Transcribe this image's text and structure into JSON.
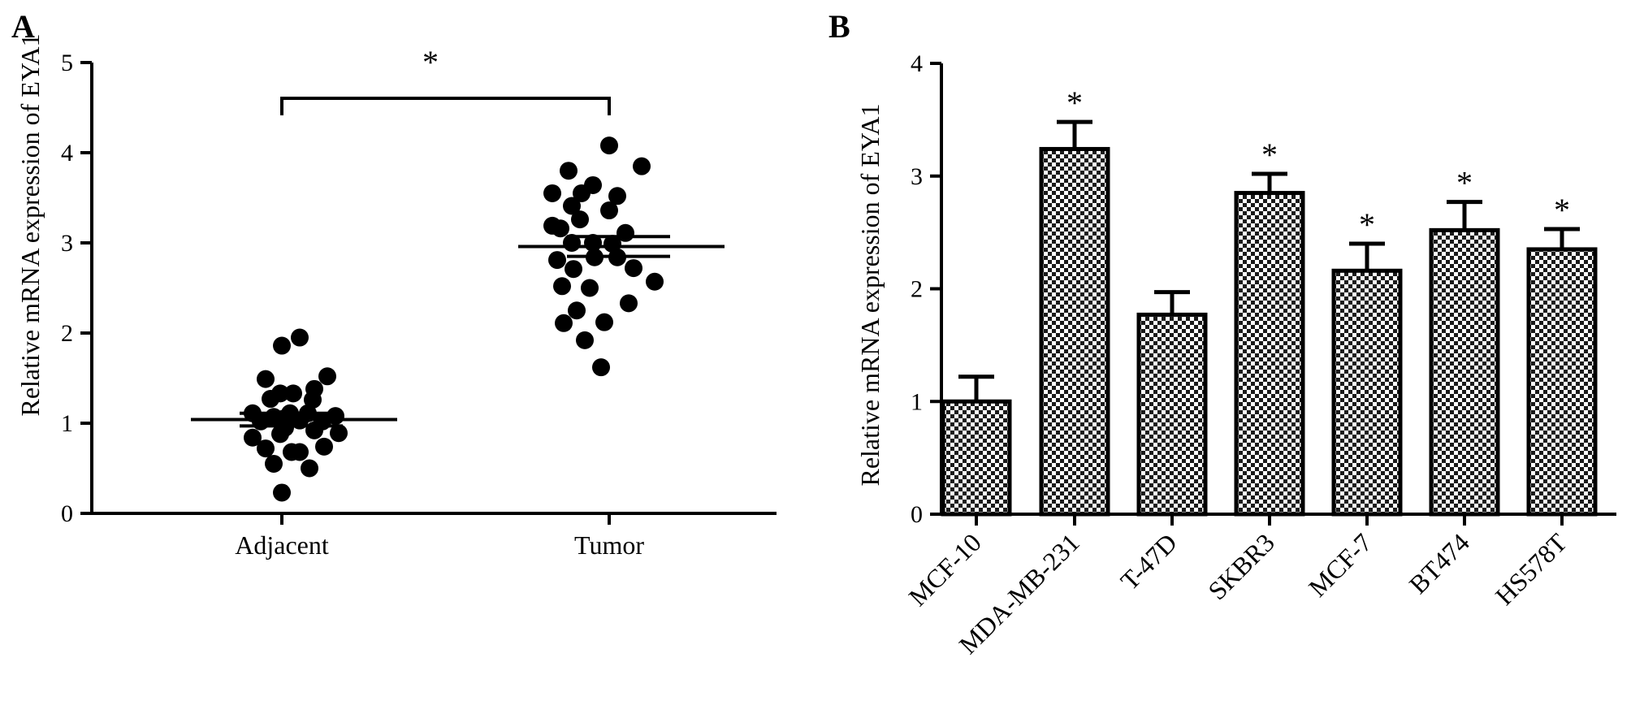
{
  "panels": [
    {
      "letter": "A"
    },
    {
      "letter": "B"
    }
  ],
  "chart_data": [
    {
      "type": "scatter",
      "title": "",
      "ylabel": "Relative mRNA expression of  EYA1",
      "xlabel": "",
      "ylim": [
        0,
        5
      ],
      "yticks": [
        "0",
        "1",
        "2",
        "3",
        "4",
        "5"
      ],
      "categories": [
        "Adjacent",
        "Tumor"
      ],
      "series": [
        {
          "category": "Adjacent",
          "mean": 1.04,
          "sem": 0.07,
          "points": [
            {
              "dx": -0.36,
              "y": 1.11
            },
            {
              "dx": -0.36,
              "y": 0.84
            },
            {
              "dx": -0.26,
              "y": 1.02
            },
            {
              "dx": -0.2,
              "y": 1.49
            },
            {
              "dx": -0.2,
              "y": 0.72
            },
            {
              "dx": -0.14,
              "y": 1.27
            },
            {
              "dx": -0.1,
              "y": 1.07
            },
            {
              "dx": -0.1,
              "y": 0.55
            },
            {
              "dx": -0.02,
              "y": 1.33
            },
            {
              "dx": -0.02,
              "y": 0.88
            },
            {
              "dx": 0.0,
              "y": 0.23
            },
            {
              "dx": 0.0,
              "y": 1.86
            },
            {
              "dx": 0.02,
              "y": 1.05
            },
            {
              "dx": 0.04,
              "y": 0.95
            },
            {
              "dx": 0.1,
              "y": 1.11
            },
            {
              "dx": 0.12,
              "y": 0.68
            },
            {
              "dx": 0.14,
              "y": 1.33
            },
            {
              "dx": 0.22,
              "y": 1.03
            },
            {
              "dx": 0.22,
              "y": 0.68
            },
            {
              "dx": 0.22,
              "y": 1.95
            },
            {
              "dx": 0.32,
              "y": 1.11
            },
            {
              "dx": 0.34,
              "y": 0.5
            },
            {
              "dx": 0.38,
              "y": 1.26
            },
            {
              "dx": 0.4,
              "y": 1.38
            },
            {
              "dx": 0.4,
              "y": 0.92
            },
            {
              "dx": 0.5,
              "y": 1.02
            },
            {
              "dx": 0.52,
              "y": 0.74
            },
            {
              "dx": 0.56,
              "y": 1.52
            },
            {
              "dx": 0.66,
              "y": 1.08
            },
            {
              "dx": 0.7,
              "y": 0.89
            }
          ]
        },
        {
          "category": "Tumor",
          "mean": 2.96,
          "sem": 0.11,
          "points": [
            {
              "dx": -0.7,
              "y": 3.55
            },
            {
              "dx": -0.7,
              "y": 3.19
            },
            {
              "dx": -0.64,
              "y": 2.81
            },
            {
              "dx": -0.6,
              "y": 3.16
            },
            {
              "dx": -0.58,
              "y": 2.52
            },
            {
              "dx": -0.56,
              "y": 2.11
            },
            {
              "dx": -0.5,
              "y": 3.8
            },
            {
              "dx": -0.46,
              "y": 3.41
            },
            {
              "dx": -0.46,
              "y": 3.0
            },
            {
              "dx": -0.44,
              "y": 2.71
            },
            {
              "dx": -0.4,
              "y": 2.25
            },
            {
              "dx": -0.36,
              "y": 3.26
            },
            {
              "dx": -0.34,
              "y": 3.55
            },
            {
              "dx": -0.3,
              "y": 1.92
            },
            {
              "dx": -0.24,
              "y": 2.5
            },
            {
              "dx": -0.2,
              "y": 3.64
            },
            {
              "dx": -0.2,
              "y": 3.0
            },
            {
              "dx": -0.18,
              "y": 2.84
            },
            {
              "dx": -0.1,
              "y": 1.62
            },
            {
              "dx": -0.06,
              "y": 2.12
            },
            {
              "dx": 0.0,
              "y": 3.36
            },
            {
              "dx": 0.0,
              "y": 4.08
            },
            {
              "dx": 0.04,
              "y": 2.99
            },
            {
              "dx": 0.1,
              "y": 2.84
            },
            {
              "dx": 0.1,
              "y": 3.52
            },
            {
              "dx": 0.2,
              "y": 3.11
            },
            {
              "dx": 0.24,
              "y": 2.33
            },
            {
              "dx": 0.3,
              "y": 2.72
            },
            {
              "dx": 0.4,
              "y": 3.85
            },
            {
              "dx": 0.56,
              "y": 2.57
            }
          ]
        }
      ],
      "significance": {
        "between": [
          "Adjacent",
          "Tumor"
        ],
        "label": "*"
      }
    },
    {
      "type": "bar",
      "title": "",
      "ylabel": "Relative mRNA expression of  EYA1",
      "xlabel": "",
      "ylim": [
        0,
        4
      ],
      "yticks": [
        "0",
        "1",
        "2",
        "3",
        "4"
      ],
      "categories": [
        "MCF-10",
        "MDA-MB-231",
        "T-47D",
        "SKBR3",
        "MCF-7",
        "BT474",
        "HS578T"
      ],
      "values": [
        1.0,
        3.24,
        1.77,
        2.85,
        2.16,
        2.52,
        2.35
      ],
      "errors": [
        0.22,
        0.24,
        0.2,
        0.17,
        0.24,
        0.25,
        0.18
      ],
      "significance": [
        "",
        "*",
        "",
        "*",
        "*",
        "*",
        "*"
      ]
    }
  ]
}
